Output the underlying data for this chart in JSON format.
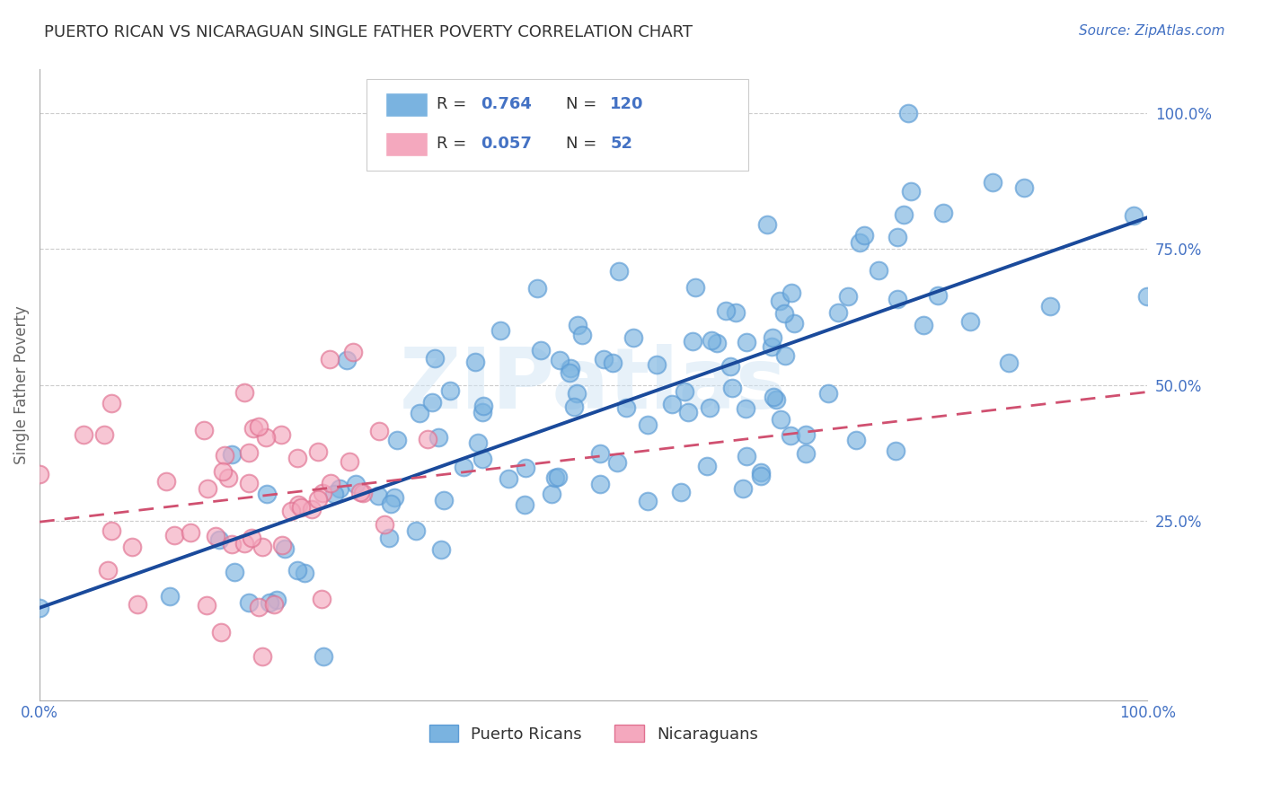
{
  "title": "PUERTO RICAN VS NICARAGUAN SINGLE FATHER POVERTY CORRELATION CHART",
  "source_text": "Source: ZipAtlas.com",
  "ylabel": "Single Father Poverty",
  "blue_color": "#7ab3e0",
  "blue_edge_color": "#5b9bd5",
  "pink_color": "#f4a8be",
  "pink_edge_color": "#e07090",
  "blue_line_color": "#1a4a9b",
  "pink_line_color": "#d05070",
  "watermark": "ZIPatlas",
  "background_color": "#ffffff",
  "grid_color": "#cccccc",
  "blue_R": 0.764,
  "pink_R": 0.057,
  "blue_N": 120,
  "pink_N": 52,
  "tick_color": "#4472c4",
  "title_color": "#333333",
  "source_color": "#4472c4"
}
